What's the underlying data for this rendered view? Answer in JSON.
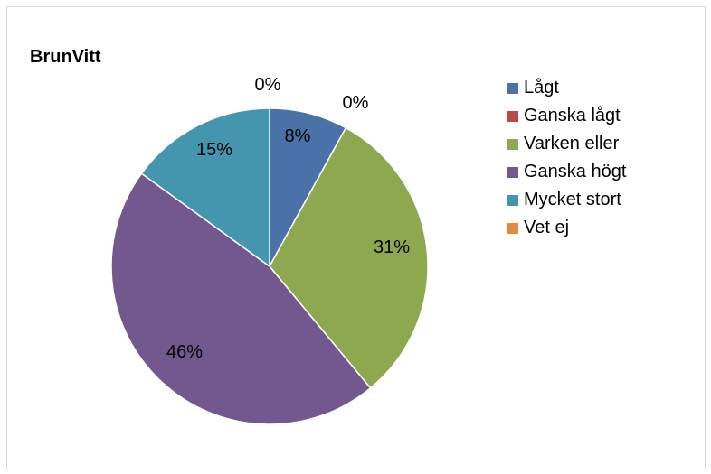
{
  "chart_data": {
    "type": "pie",
    "title": "BrunVitt",
    "legend_position": "right",
    "slices": [
      {
        "name": "Lågt",
        "value": 8,
        "label": "8%",
        "color": "#4a72a8"
      },
      {
        "name": "Ganska lågt",
        "value": 0,
        "label": "0%",
        "color": "#b94a48"
      },
      {
        "name": "Varken eller",
        "value": 31,
        "label": "31%",
        "color": "#8ea84f"
      },
      {
        "name": "Ganska högt",
        "value": 46,
        "label": "46%",
        "color": "#73588f"
      },
      {
        "name": "Mycket stort",
        "value": 15,
        "label": "15%",
        "color": "#4396ad"
      },
      {
        "name": "Vet ej",
        "value": 0,
        "label": "0%",
        "color": "#e08a3c"
      }
    ]
  }
}
